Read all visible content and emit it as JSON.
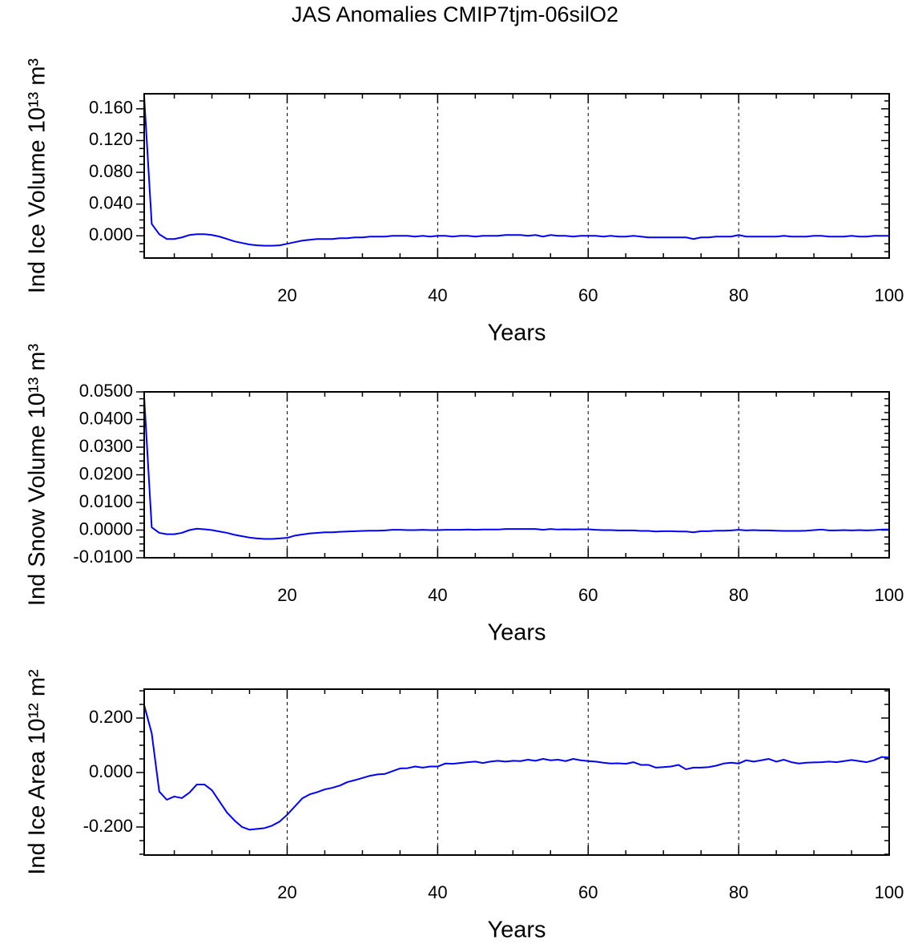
{
  "title": "JAS Anomalies CMIP7tjm-06silO2",
  "chart_data": [
    {
      "type": "line",
      "xlabel": "Years",
      "ylabel": "Ind Ice Volume 10¹³ m³",
      "xlim": [
        1,
        100
      ],
      "xticks": [
        20,
        40,
        60,
        80,
        100
      ],
      "xgrid": true,
      "ylim": [
        -0.028,
        0.179
      ],
      "yticks": [
        {
          "value": 0,
          "label": "0.000"
        },
        {
          "value": 0.04,
          "label": "0.040"
        },
        {
          "value": 0.08,
          "label": "0.080"
        },
        {
          "value": 0.12,
          "label": "0.120"
        },
        {
          "value": 0.16,
          "label": "0.160"
        }
      ],
      "x": [
        1,
        2,
        3,
        4,
        5,
        6,
        7,
        8,
        9,
        10,
        11,
        12,
        13,
        14,
        15,
        16,
        17,
        18,
        19,
        20,
        21,
        22,
        23,
        24,
        25,
        26,
        27,
        28,
        29,
        30,
        31,
        32,
        33,
        34,
        35,
        36,
        37,
        38,
        39,
        40,
        41,
        42,
        43,
        44,
        45,
        46,
        47,
        48,
        49,
        50,
        51,
        52,
        53,
        54,
        55,
        56,
        57,
        58,
        59,
        60,
        61,
        62,
        63,
        64,
        65,
        66,
        67,
        68,
        69,
        70,
        71,
        72,
        73,
        74,
        75,
        76,
        77,
        78,
        79,
        80,
        81,
        82,
        83,
        84,
        85,
        86,
        87,
        88,
        89,
        90,
        91,
        92,
        93,
        94,
        95,
        96,
        97,
        98,
        99,
        100
      ],
      "series": [
        {
          "color": "#0000ff",
          "values": [
            0.175,
            0.015,
            0.002,
            -0.004,
            -0.004,
            -0.002,
            0.001,
            0.002,
            0.002,
            0.001,
            -0.001,
            -0.004,
            -0.007,
            -0.009,
            -0.011,
            -0.012,
            -0.0125,
            -0.0125,
            -0.012,
            -0.01,
            -0.008,
            -0.006,
            -0.005,
            -0.004,
            -0.004,
            -0.004,
            -0.003,
            -0.003,
            -0.002,
            -0.002,
            -0.001,
            -0.001,
            -0.001,
            0.0,
            0.0,
            0.0,
            -0.001,
            0.0,
            -0.001,
            0.0,
            0.0,
            -0.001,
            0.0,
            0.0,
            -0.001,
            0.0,
            0.0,
            0.0,
            0.001,
            0.001,
            0.001,
            0.0,
            0.001,
            -0.001,
            0.001,
            0.0,
            0.0,
            -0.001,
            0.0,
            0.0,
            0.0,
            -0.001,
            0.0,
            -0.001,
            -0.001,
            0.0,
            -0.001,
            -0.002,
            -0.002,
            -0.002,
            -0.002,
            -0.002,
            -0.002,
            -0.004,
            -0.002,
            -0.002,
            -0.001,
            -0.001,
            -0.001,
            0.001,
            -0.001,
            -0.001,
            -0.001,
            -0.001,
            -0.001,
            0.0,
            -0.001,
            -0.001,
            -0.001,
            0.0,
            0.0,
            -0.001,
            -0.001,
            -0.001,
            0.0,
            -0.001,
            -0.001,
            0.0,
            0.0,
            0.0
          ]
        }
      ]
    },
    {
      "type": "line",
      "xlabel": "Years",
      "ylabel": "Ind Snow Volume 10¹³ m³",
      "xlim": [
        1,
        100
      ],
      "xticks": [
        20,
        40,
        60,
        80,
        100
      ],
      "xgrid": true,
      "ylim": [
        -0.01,
        0.05
      ],
      "yticks": [
        {
          "value": -0.01,
          "label": "-0.0100"
        },
        {
          "value": 0,
          "label": "0.0000"
        },
        {
          "value": 0.01,
          "label": "0.0100"
        },
        {
          "value": 0.02,
          "label": "0.0200"
        },
        {
          "value": 0.03,
          "label": "0.0300"
        },
        {
          "value": 0.04,
          "label": "0.0400"
        },
        {
          "value": 0.05,
          "label": "0.0500"
        }
      ],
      "x": [
        1,
        2,
        3,
        4,
        5,
        6,
        7,
        8,
        9,
        10,
        11,
        12,
        13,
        14,
        15,
        16,
        17,
        18,
        19,
        20,
        21,
        22,
        23,
        24,
        25,
        26,
        27,
        28,
        29,
        30,
        31,
        32,
        33,
        34,
        35,
        36,
        37,
        38,
        39,
        40,
        41,
        42,
        43,
        44,
        45,
        46,
        47,
        48,
        49,
        50,
        51,
        52,
        53,
        54,
        55,
        56,
        57,
        58,
        59,
        60,
        61,
        62,
        63,
        64,
        65,
        66,
        67,
        68,
        69,
        70,
        71,
        72,
        73,
        74,
        75,
        76,
        77,
        78,
        79,
        80,
        81,
        82,
        83,
        84,
        85,
        86,
        87,
        88,
        89,
        90,
        91,
        92,
        93,
        94,
        95,
        96,
        97,
        98,
        99,
        100
      ],
      "series": [
        {
          "color": "#0000ff",
          "values": [
            0.048,
            0.001,
            -0.001,
            -0.0015,
            -0.0015,
            -0.001,
            0.0,
            0.0005,
            0.0003,
            0.0,
            -0.0005,
            -0.001,
            -0.0017,
            -0.0022,
            -0.0027,
            -0.003,
            -0.0032,
            -0.0032,
            -0.003,
            -0.0028,
            -0.002,
            -0.0016,
            -0.0012,
            -0.001,
            -0.0008,
            -0.0008,
            -0.0006,
            -0.0005,
            -0.0004,
            -0.0003,
            -0.0002,
            -0.0002,
            -0.0001,
            0.0001,
            0.0001,
            0.0,
            0.0,
            0.0001,
            0.0,
            0.0,
            0.0001,
            0.0001,
            0.0001,
            0.0002,
            0.0001,
            0.0002,
            0.0002,
            0.0002,
            0.0004,
            0.0004,
            0.0004,
            0.0004,
            0.0004,
            0.0001,
            0.0004,
            0.0002,
            0.0003,
            0.0002,
            0.0003,
            0.0003,
            0.0001,
            0.0,
            0.0,
            -0.0001,
            -0.0001,
            -0.0001,
            -0.0003,
            -0.0003,
            -0.0005,
            -0.0004,
            -0.0004,
            -0.0005,
            -0.0005,
            -0.0008,
            -0.0004,
            -0.0004,
            -0.0002,
            -0.0002,
            -0.0001,
            0.0001,
            -0.0001,
            0.0,
            -0.0001,
            -0.0001,
            -0.0002,
            -0.0003,
            -0.0003,
            -0.0003,
            -0.0002,
            0.0,
            0.0002,
            -0.0001,
            -0.0001,
            0.0,
            -0.0001,
            0.0,
            -0.0001,
            0.0,
            0.0002,
            0.0002
          ]
        }
      ]
    },
    {
      "type": "line",
      "xlabel": "Years",
      "ylabel": "Ind Ice Area 10¹² m²",
      "xlim": [
        1,
        100
      ],
      "xticks": [
        20,
        40,
        60,
        80,
        100
      ],
      "xgrid": true,
      "ylim": [
        -0.303,
        0.306
      ],
      "yticks": [
        {
          "value": -0.2,
          "label": "-0.200"
        },
        {
          "value": 0,
          "label": "0.000"
        },
        {
          "value": 0.2,
          "label": "0.200"
        }
      ],
      "x": [
        1,
        2,
        3,
        4,
        5,
        6,
        7,
        8,
        9,
        10,
        11,
        12,
        13,
        14,
        15,
        16,
        17,
        18,
        19,
        20,
        21,
        22,
        23,
        24,
        25,
        26,
        27,
        28,
        29,
        30,
        31,
        32,
        33,
        34,
        35,
        36,
        37,
        38,
        39,
        40,
        41,
        42,
        43,
        44,
        45,
        46,
        47,
        48,
        49,
        50,
        51,
        52,
        53,
        54,
        55,
        56,
        57,
        58,
        59,
        60,
        61,
        62,
        63,
        64,
        65,
        66,
        67,
        68,
        69,
        70,
        71,
        72,
        73,
        74,
        75,
        76,
        77,
        78,
        79,
        80,
        81,
        82,
        83,
        84,
        85,
        86,
        87,
        88,
        89,
        90,
        91,
        92,
        93,
        94,
        95,
        96,
        97,
        98,
        99,
        100
      ],
      "series": [
        {
          "color": "#0000ff",
          "values": [
            0.247,
            0.144,
            -0.07,
            -0.1,
            -0.088,
            -0.094,
            -0.074,
            -0.044,
            -0.044,
            -0.065,
            -0.106,
            -0.147,
            -0.176,
            -0.2,
            -0.21,
            -0.207,
            -0.204,
            -0.195,
            -0.18,
            -0.155,
            -0.125,
            -0.095,
            -0.08,
            -0.072,
            -0.062,
            -0.056,
            -0.048,
            -0.035,
            -0.028,
            -0.02,
            -0.012,
            -0.007,
            -0.005,
            0.005,
            0.015,
            0.016,
            0.022,
            0.018,
            0.022,
            0.022,
            0.033,
            0.032,
            0.035,
            0.038,
            0.04,
            0.035,
            0.04,
            0.043,
            0.04,
            0.043,
            0.042,
            0.047,
            0.043,
            0.05,
            0.045,
            0.047,
            0.042,
            0.05,
            0.045,
            0.042,
            0.04,
            0.036,
            0.033,
            0.034,
            0.032,
            0.038,
            0.028,
            0.028,
            0.018,
            0.02,
            0.022,
            0.028,
            0.012,
            0.018,
            0.018,
            0.02,
            0.025,
            0.033,
            0.036,
            0.033,
            0.045,
            0.04,
            0.045,
            0.05,
            0.04,
            0.047,
            0.038,
            0.033,
            0.036,
            0.037,
            0.038,
            0.04,
            0.038,
            0.042,
            0.046,
            0.042,
            0.038,
            0.045,
            0.057,
            0.055
          ]
        }
      ]
    }
  ]
}
